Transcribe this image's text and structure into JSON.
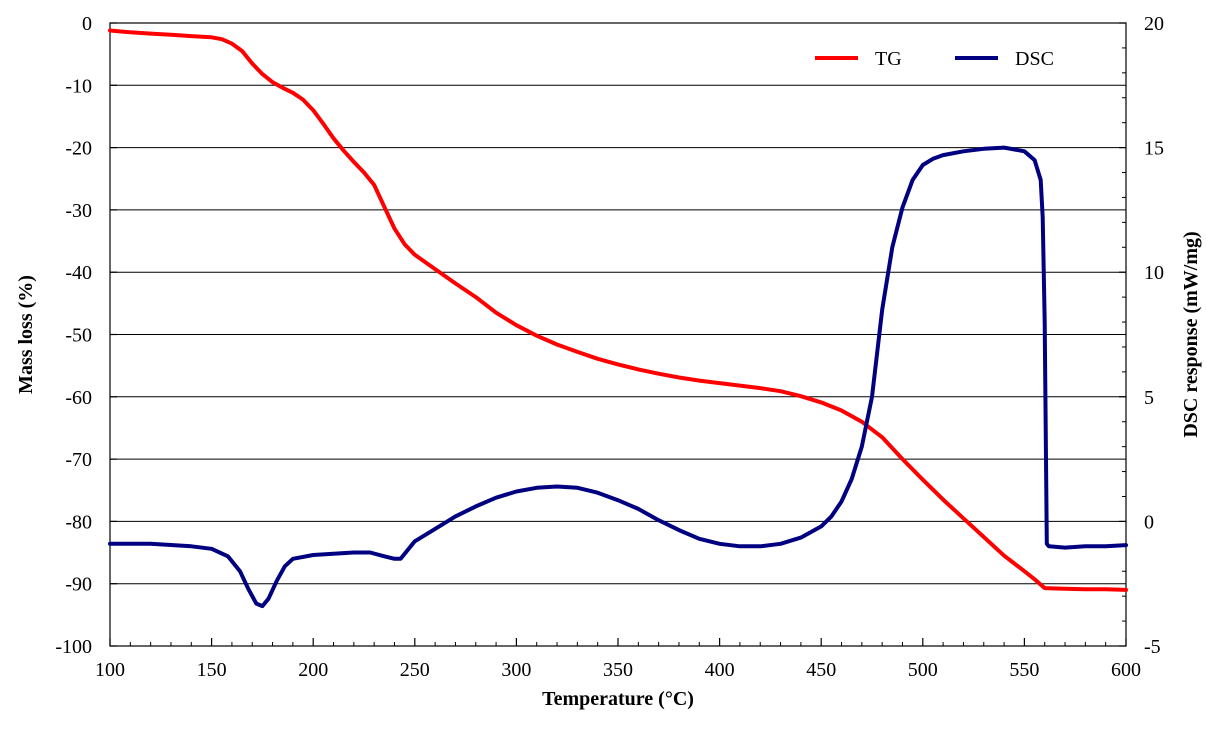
{
  "chart_data": {
    "type": "line",
    "xlabel": "Temperature (°C)",
    "ylabel": "Mass loss (%)",
    "y2label": "DSC response  (mW/mg)",
    "xlim": [
      100,
      600
    ],
    "ylim": [
      -100,
      0
    ],
    "y2lim": [
      -5,
      20
    ],
    "x_ticks": [
      "100",
      "150",
      "200",
      "250",
      "300",
      "350",
      "400",
      "450",
      "500",
      "550",
      "600"
    ],
    "y_ticks": [
      "0",
      "-10",
      "-20",
      "-30",
      "-40",
      "-50",
      "-60",
      "-70",
      "-80",
      "-90",
      "-100"
    ],
    "y2_ticks": [
      "20",
      "15",
      "10",
      "5",
      "0",
      "-5"
    ],
    "grid": "horizontal",
    "legend_position": "top-right",
    "colors": {
      "TG": "#ff0000",
      "DSC": "#000080"
    },
    "series": [
      {
        "name": "TG",
        "axis": "left",
        "x": [
          100,
          110,
          120,
          130,
          140,
          150,
          155,
          160,
          165,
          170,
          175,
          180,
          185,
          190,
          195,
          200,
          205,
          210,
          215,
          220,
          225,
          230,
          235,
          240,
          245,
          250,
          260,
          270,
          280,
          290,
          300,
          310,
          320,
          330,
          340,
          350,
          360,
          370,
          380,
          390,
          400,
          410,
          420,
          430,
          440,
          450,
          460,
          470,
          480,
          490,
          500,
          510,
          520,
          530,
          540,
          550,
          555,
          560,
          570,
          580,
          590,
          600
        ],
        "values": [
          -1.2,
          -1.5,
          -1.7,
          -1.9,
          -2.1,
          -2.3,
          -2.6,
          -3.3,
          -4.5,
          -6.5,
          -8.2,
          -9.5,
          -10.4,
          -11.2,
          -12.3,
          -14.0,
          -16.2,
          -18.5,
          -20.5,
          -22.3,
          -24.0,
          -26.0,
          -29.5,
          -33.0,
          -35.5,
          -37.2,
          -39.5,
          -41.8,
          -44.0,
          -46.5,
          -48.5,
          -50.2,
          -51.6,
          -52.8,
          -53.9,
          -54.8,
          -55.6,
          -56.3,
          -56.9,
          -57.4,
          -57.8,
          -58.2,
          -58.6,
          -59.1,
          -59.9,
          -60.9,
          -62.2,
          -64.0,
          -66.5,
          -70.0,
          -73.3,
          -76.5,
          -79.5,
          -82.5,
          -85.5,
          -88.0,
          -89.3,
          -90.7,
          -90.8,
          -90.9,
          -90.9,
          -91.0
        ]
      },
      {
        "name": "DSC",
        "axis": "right",
        "x": [
          100,
          120,
          140,
          150,
          158,
          164,
          168,
          172,
          175,
          178,
          182,
          186,
          190,
          200,
          210,
          220,
          228,
          235,
          240,
          243,
          246,
          250,
          260,
          270,
          280,
          290,
          300,
          310,
          320,
          330,
          340,
          350,
          360,
          370,
          380,
          390,
          400,
          410,
          420,
          430,
          440,
          450,
          455,
          460,
          465,
          470,
          475,
          480,
          485,
          490,
          495,
          500,
          505,
          510,
          520,
          530,
          540,
          550,
          555,
          558,
          559,
          560,
          561,
          562,
          570,
          580,
          590,
          600
        ],
        "values": [
          -0.9,
          -0.9,
          -1.0,
          -1.1,
          -1.4,
          -2.0,
          -2.7,
          -3.3,
          -3.4,
          -3.1,
          -2.4,
          -1.8,
          -1.5,
          -1.35,
          -1.3,
          -1.25,
          -1.25,
          -1.4,
          -1.5,
          -1.5,
          -1.2,
          -0.8,
          -0.3,
          0.2,
          0.6,
          0.95,
          1.2,
          1.35,
          1.4,
          1.35,
          1.15,
          0.85,
          0.5,
          0.05,
          -0.35,
          -0.7,
          -0.9,
          -1.0,
          -1.0,
          -0.9,
          -0.65,
          -0.2,
          0.2,
          0.8,
          1.7,
          3.0,
          5.0,
          8.5,
          11.0,
          12.6,
          13.7,
          14.3,
          14.55,
          14.7,
          14.85,
          14.95,
          15.0,
          14.85,
          14.5,
          13.7,
          12.2,
          8.0,
          -0.9,
          -1.0,
          -1.05,
          -1.0,
          -1.0,
          -0.95
        ]
      }
    ]
  }
}
